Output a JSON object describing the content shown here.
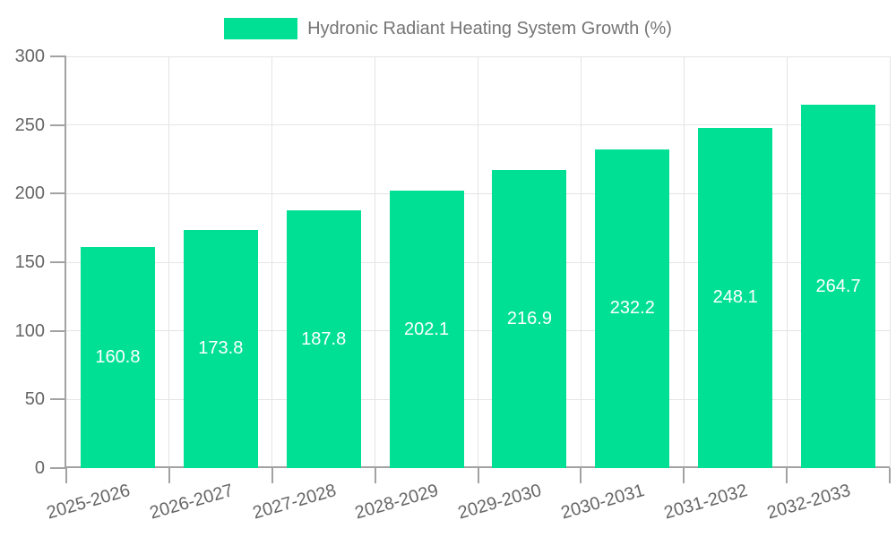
{
  "chart_data": {
    "type": "bar",
    "title": "Hydronic Radiant Heating System Growth (%)",
    "categories": [
      "2025-2026",
      "2026-2027",
      "2027-2028",
      "2028-2029",
      "2029-2030",
      "2030-2031",
      "2031-2032",
      "2032-2033"
    ],
    "values": [
      160.8,
      173.8,
      187.8,
      202.1,
      216.9,
      232.2,
      248.1,
      264.7
    ],
    "value_labels": [
      "160.8",
      "173.8",
      "187.8",
      "202.1",
      "216.9",
      "232.2",
      "248.1",
      "264.7"
    ],
    "ytick_labels": [
      "0",
      "50",
      "100",
      "150",
      "200",
      "250",
      "300"
    ],
    "yticks": [
      0,
      50,
      100,
      150,
      200,
      250,
      300
    ],
    "ylim": [
      0,
      300
    ],
    "xlabel": "",
    "ylabel": "",
    "grid": true,
    "legend_position": "top",
    "x_label_rotation_deg": -16,
    "colors": {
      "bar": "#00e095",
      "value_label": "#ffffff",
      "axis": "#a2a2a2",
      "gridline": "#e4e4e4",
      "tick_label": "#666666",
      "legend_text": "#757575",
      "background": "#ffffff"
    }
  }
}
